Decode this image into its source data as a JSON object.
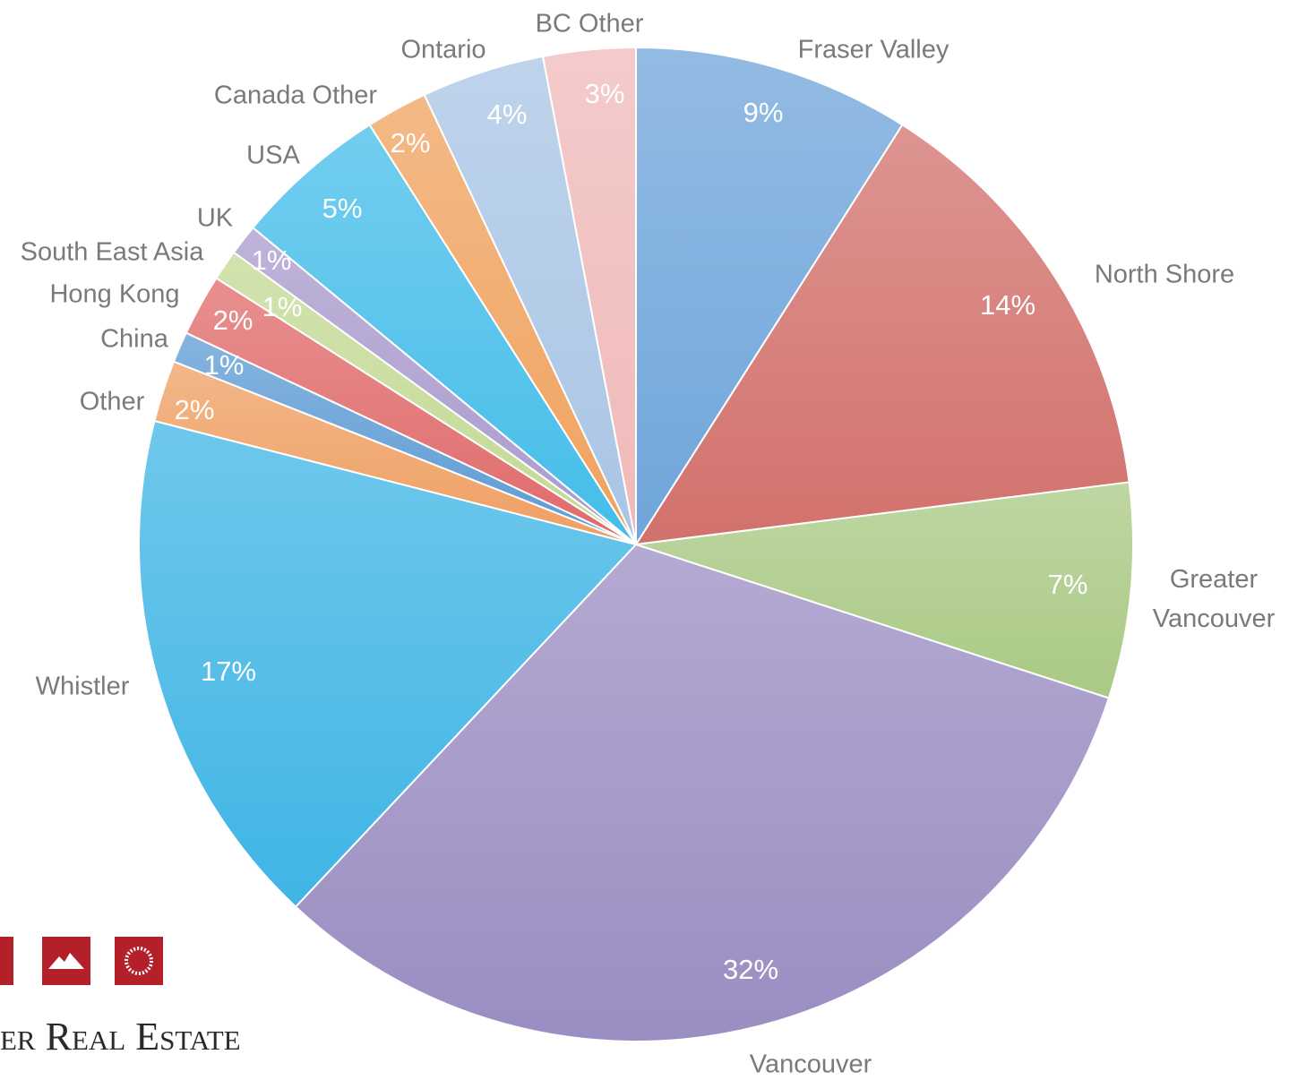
{
  "chart_data": {
    "type": "pie",
    "categories": [
      "Fraser Valley",
      "North Shore",
      "Greater Vancouver",
      "Vancouver",
      "Whistler",
      "Other",
      "China",
      "Hong Kong",
      "South East Asia",
      "UK",
      "USA",
      "Canada Other",
      "Ontario",
      "BC Other"
    ],
    "values": [
      9,
      14,
      7,
      32,
      17,
      2,
      1,
      2,
      1,
      1,
      5,
      2,
      4,
      3
    ],
    "value_labels": [
      "9%",
      "14%",
      "7%",
      "32%",
      "17%",
      "2%",
      "1%",
      "2%",
      "1%",
      "1%",
      "5%",
      "2%",
      "4%",
      "3%"
    ],
    "colors": [
      "#6fa5da",
      "#d2716c",
      "#a9c984",
      "#9a8dc2",
      "#3fb5e5",
      "#ef9f62",
      "#5d9bd4",
      "#e06a6a",
      "#c3d994",
      "#a99acd",
      "#44bde9",
      "#f0a25e",
      "#a9c5e5",
      "#f0b9b9"
    ]
  },
  "footer_text": "er Real Estate"
}
